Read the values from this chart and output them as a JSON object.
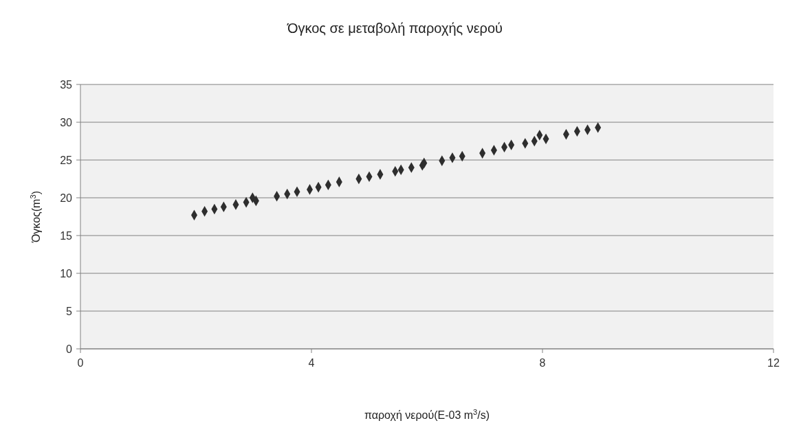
{
  "chart_data": {
    "type": "scatter",
    "title": "Όγκος σε μεταβολή παροχής νερού",
    "xlabel": "παροχή νερού(E-03 m$^{3}$/s)",
    "ylabel": "Όγκος(m$^{3}$)",
    "x": [
      1.97,
      2.15,
      2.32,
      2.48,
      2.69,
      2.87,
      2.98,
      3.04,
      3.4,
      3.58,
      3.75,
      3.97,
      4.12,
      4.29,
      4.48,
      4.82,
      5.0,
      5.19,
      5.45,
      5.55,
      5.73,
      5.92,
      5.95,
      6.26,
      6.44,
      6.61,
      6.96,
      7.16,
      7.34,
      7.46,
      7.7,
      7.86,
      7.95,
      8.06,
      8.41,
      8.6,
      8.78,
      8.96
    ],
    "values": [
      17.7,
      18.2,
      18.5,
      18.8,
      19.1,
      19.4,
      20.0,
      19.6,
      20.2,
      20.5,
      20.8,
      21.1,
      21.4,
      21.7,
      22.1,
      22.5,
      22.8,
      23.1,
      23.5,
      23.7,
      24.0,
      24.3,
      24.6,
      24.9,
      25.3,
      25.5,
      25.9,
      26.3,
      26.7,
      27.0,
      27.2,
      27.5,
      28.3,
      27.8,
      28.4,
      28.8,
      29.0,
      29.3
    ],
    "color": "#2e2e2e",
    "marker": "diamond",
    "xlim": [
      0,
      12
    ],
    "xticks": [
      0,
      4,
      8,
      12
    ],
    "ylim": [
      0,
      35
    ],
    "yticks": [
      0,
      5,
      10,
      15,
      20,
      25,
      30,
      35
    ],
    "grid": "y"
  }
}
